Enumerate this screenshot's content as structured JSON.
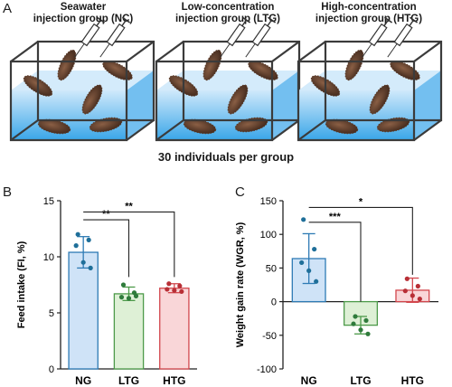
{
  "panels": {
    "a": "A",
    "b": "B",
    "c": "C"
  },
  "groups": [
    {
      "title_line1": "Seawater",
      "title_line2": "injection group (NC)",
      "syringes": 2
    },
    {
      "title_line1": "Low-concentration",
      "title_line2": "injection group (LTG)",
      "syringes": 2
    },
    {
      "title_line1": "High-concentration",
      "title_line2": "injection group (HTG)",
      "syringes": 2
    }
  ],
  "caption": "30 individuals per group",
  "colors": {
    "water_top": "#cfe9fb",
    "water_bottom": "#3aa6e8",
    "tank_frame": "#3b3b3b",
    "animal": "#5a3a28",
    "ng_fill": "#cfe3f7",
    "ng_edge": "#2e7bb5",
    "ng_dot": "#1f6f99",
    "ltg_fill": "#def0d6",
    "ltg_edge": "#4d9a4a",
    "ltg_dot": "#2f7b3c",
    "htg_fill": "#f9d6d8",
    "htg_edge": "#d2474d",
    "htg_dot": "#b82f36"
  },
  "chart_data": [
    {
      "type": "bar",
      "panel": "B",
      "categories": [
        "NG",
        "LTG",
        "HTG"
      ],
      "values": [
        10.4,
        6.7,
        7.2
      ],
      "error": [
        1.4,
        0.6,
        0.4
      ],
      "points": [
        [
          12.0,
          11.5,
          11.0,
          9.5,
          9.0
        ],
        [
          7.5,
          6.8,
          6.4,
          6.3,
          6.5
        ],
        [
          7.6,
          7.4,
          7.1,
          7.0,
          6.9
        ]
      ],
      "ylabel": "Feed intake (FI, %)",
      "ylim": [
        0,
        15
      ],
      "yticks": [
        "0",
        "5",
        "10",
        "15"
      ],
      "ytick_values": [
        0,
        5,
        10,
        15
      ],
      "significance": [
        {
          "from": "NG",
          "to": "LTG",
          "label": "**",
          "ends_at_value": 8.2,
          "top_value": 13.3
        },
        {
          "from": "NG",
          "to": "HTG",
          "label": "**",
          "ends_at_value": 8.2,
          "top_value": 14.0
        }
      ]
    },
    {
      "type": "bar",
      "panel": "C",
      "categories": [
        "NG",
        "LTG",
        "HTG"
      ],
      "values": [
        64,
        -35,
        17
      ],
      "error": [
        37,
        13,
        18
      ],
      "points": [
        [
          122,
          78,
          58,
          46,
          30
        ],
        [
          -22,
          -28,
          -33,
          -42,
          -48
        ],
        [
          34,
          23,
          16,
          9,
          4
        ]
      ],
      "ylabel": "Weight gain rate (WGR, %)",
      "ylim": [
        -100,
        150
      ],
      "yticks": [
        "-100",
        "-50",
        "0",
        "50",
        "100",
        "150"
      ],
      "ytick_values": [
        -100,
        -50,
        0,
        50,
        100,
        150
      ],
      "significance": [
        {
          "from": "NG",
          "to": "LTG",
          "label": "***",
          "ends_at_value": 0,
          "top_value": 118
        },
        {
          "from": "NG",
          "to": "HTG",
          "label": "*",
          "ends_at_value": 40,
          "top_value": 140
        }
      ]
    }
  ]
}
